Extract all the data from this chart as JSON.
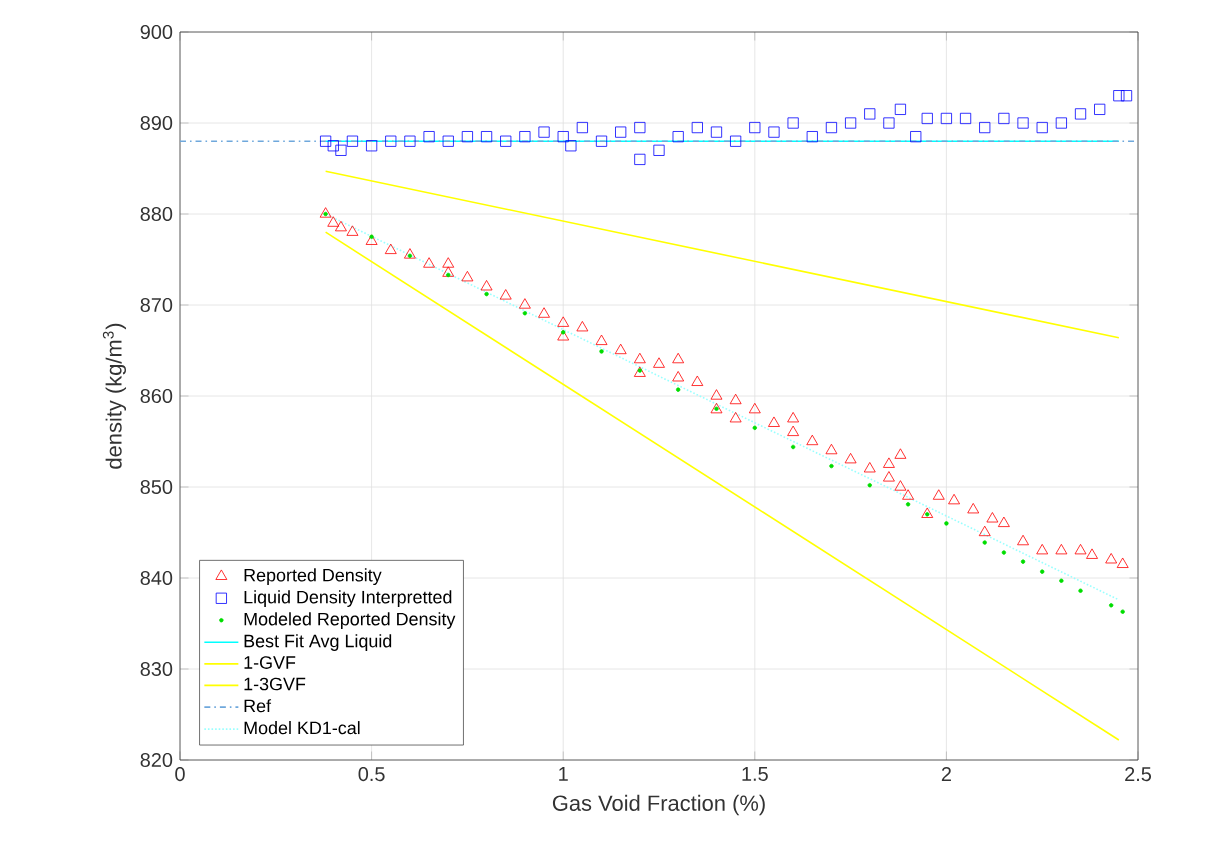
{
  "chart_data": {
    "type": "scatter",
    "xlabel": "Gas Void Fraction (%)",
    "ylabel": "density (kg/m$^{3}$)",
    "xlim": [
      0,
      2.5
    ],
    "ylim": [
      820,
      900
    ],
    "xticks": [
      0,
      0.5,
      1,
      1.5,
      2,
      2.5
    ],
    "yticks": [
      820,
      830,
      840,
      850,
      860,
      870,
      880,
      890,
      900
    ],
    "grid": true,
    "legend": "bottom left",
    "series": [
      {
        "name": "Reported Density",
        "type": "scatter",
        "marker": "triangle",
        "color": "#ff0000",
        "x": [
          0.38,
          0.4,
          0.42,
          0.45,
          0.5,
          0.55,
          0.6,
          0.65,
          0.7,
          0.7,
          0.75,
          0.8,
          0.85,
          0.9,
          0.95,
          1.0,
          1.0,
          1.05,
          1.1,
          1.15,
          1.2,
          1.2,
          1.25,
          1.3,
          1.3,
          1.35,
          1.4,
          1.4,
          1.45,
          1.45,
          1.5,
          1.55,
          1.6,
          1.6,
          1.65,
          1.7,
          1.75,
          1.8,
          1.85,
          1.85,
          1.88,
          1.88,
          1.9,
          1.95,
          1.98,
          2.02,
          2.07,
          2.1,
          2.12,
          2.15,
          2.2,
          2.25,
          2.3,
          2.35,
          2.38,
          2.43,
          2.46
        ],
        "values": [
          880,
          879,
          878.5,
          878,
          877,
          876,
          875.5,
          874.5,
          873.5,
          874.5,
          873,
          872,
          871,
          870,
          869,
          868,
          866.5,
          867.5,
          866,
          865,
          864,
          862.5,
          863.5,
          862,
          864,
          861.5,
          860,
          858.5,
          859.5,
          857.5,
          858.5,
          857,
          856,
          857.5,
          855,
          854,
          853,
          852,
          851,
          852.5,
          850,
          853.5,
          849,
          847,
          849,
          848.5,
          847.5,
          845,
          846.5,
          846,
          844,
          843,
          843,
          843,
          842.5,
          842,
          841.5
        ]
      },
      {
        "name": "Liquid Density Interpretted",
        "type": "scatter",
        "marker": "square",
        "color": "#0000ff",
        "x": [
          0.38,
          0.4,
          0.42,
          0.45,
          0.5,
          0.55,
          0.6,
          0.65,
          0.7,
          0.75,
          0.8,
          0.85,
          0.9,
          0.95,
          1.0,
          1.02,
          1.05,
          1.1,
          1.15,
          1.2,
          1.2,
          1.25,
          1.3,
          1.35,
          1.4,
          1.45,
          1.5,
          1.55,
          1.6,
          1.65,
          1.7,
          1.75,
          1.8,
          1.85,
          1.88,
          1.92,
          1.95,
          2.0,
          2.05,
          2.1,
          2.15,
          2.2,
          2.25,
          2.3,
          2.35,
          2.4,
          2.45,
          2.47
        ],
        "values": [
          888,
          887.5,
          887,
          888,
          887.5,
          888,
          888,
          888.5,
          888,
          888.5,
          888.5,
          888,
          888.5,
          889,
          888.5,
          887.5,
          889.5,
          888,
          889,
          889.5,
          886,
          887,
          888.5,
          889.5,
          889,
          888,
          889.5,
          889,
          890,
          888.5,
          889.5,
          890,
          891,
          890,
          891.5,
          888.5,
          890.5,
          890.5,
          890.5,
          889.5,
          890.5,
          890,
          889.5,
          890,
          891,
          891.5,
          893,
          893
        ]
      },
      {
        "name": "Modeled Reported Density",
        "type": "scatter",
        "marker": "circle",
        "color": "#00dd00",
        "x": [
          0.38,
          0.5,
          0.6,
          0.7,
          0.8,
          0.9,
          1.0,
          1.1,
          1.2,
          1.3,
          1.4,
          1.5,
          1.6,
          1.7,
          1.8,
          1.9,
          1.95,
          2.0,
          2.1,
          2.15,
          2.2,
          2.25,
          2.3,
          2.35,
          2.43,
          2.46
        ],
        "values": [
          880,
          877.5,
          875.4,
          873.3,
          871.2,
          869.1,
          867.0,
          864.9,
          862.8,
          860.7,
          858.6,
          856.5,
          854.4,
          852.3,
          850.2,
          848.1,
          847.0,
          846.0,
          843.9,
          842.8,
          841.8,
          840.7,
          839.7,
          838.6,
          837.0,
          836.3
        ]
      },
      {
        "name": "Best Fit Avg Liquid",
        "type": "line",
        "line_style": "solid",
        "color": "#00ffff",
        "x": [
          0.38,
          2.45
        ],
        "values": [
          888,
          888
        ]
      },
      {
        "name": "1-GVF",
        "type": "line",
        "line_style": "solid",
        "color": "#ffff00",
        "x": [
          0.38,
          2.45
        ],
        "values": [
          884.7,
          866.4
        ]
      },
      {
        "name": "1-3GVF",
        "type": "line",
        "line_style": "solid",
        "color": "#ffff00",
        "x": [
          0.38,
          2.45
        ],
        "values": [
          878,
          822.2
        ]
      },
      {
        "name": "Ref",
        "type": "line",
        "line_style": "dashdot",
        "color": "#6fa8dc",
        "x": [
          0,
          2.5
        ],
        "values": [
          888,
          888
        ]
      },
      {
        "name": "Model KD1-cal",
        "type": "line",
        "line_style": "dotted",
        "color": "#99ffff",
        "x": [
          0.38,
          2.45
        ],
        "values": [
          880,
          837.6
        ]
      }
    ]
  }
}
